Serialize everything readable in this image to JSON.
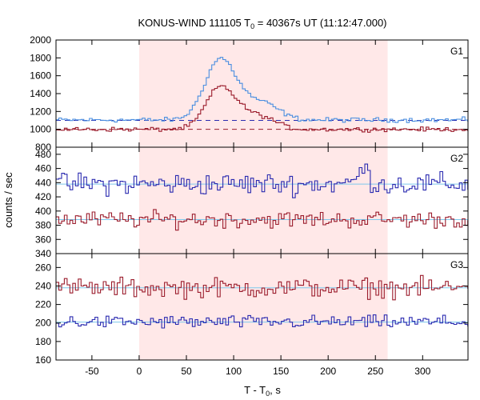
{
  "chart_data": {
    "type": "line",
    "title": {
      "main": "KONUS-WIND 111105 T",
      "sub": "0",
      "rest": " = 40367s UT (11:12:47.000)"
    },
    "xlabel": {
      "main": "T - T",
      "sub": "0",
      "rest": ", s"
    },
    "ylabel": "counts / sec",
    "xlim": [
      -88,
      348
    ],
    "xticks": [
      -50,
      0,
      50,
      100,
      150,
      200,
      250,
      300
    ],
    "highlight_interval": [
      0,
      263
    ],
    "colors": {
      "red": "#9b1c2c",
      "blue": "#2a2ab0",
      "lightblue": "#4a8ee0",
      "bg_line": "#7ec8ec",
      "band": "#ffe8e8"
    },
    "panels": [
      {
        "label": "G1",
        "ylim": [
          800,
          2000
        ],
        "yticks": [
          800,
          1000,
          1200,
          1400,
          1600,
          1800,
          2000
        ],
        "background_levels": [
          {
            "series": "blue",
            "value": 1100,
            "style": "dashed"
          },
          {
            "series": "red",
            "value": 1000,
            "style": "dashed"
          }
        ],
        "series": [
          {
            "color": "lightblue",
            "base": 1105,
            "noise": 22,
            "peaks": [
              {
                "x": 55,
                "rise": 25,
                "decay": 0,
                "amp": 0
              },
              {
                "x": 85,
                "amp": 640,
                "sigma": 16
              },
              {
                "x": 117,
                "amp": 180,
                "sigma": 20
              },
              {
                "x": 140,
                "amp": 70,
                "sigma": 14
              }
            ]
          },
          {
            "color": "red",
            "base": 1000,
            "noise": 20,
            "peaks": [
              {
                "x": 85,
                "amp": 440,
                "sigma": 15
              },
              {
                "x": 115,
                "amp": 160,
                "sigma": 18
              },
              {
                "x": 140,
                "amp": 50,
                "sigma": 12
              }
            ]
          }
        ]
      },
      {
        "label": "G2",
        "ylim": [
          340,
          490
        ],
        "yticks": [
          340,
          360,
          380,
          400,
          420,
          440,
          460,
          480
        ],
        "background_levels": [
          {
            "series": "bg_line",
            "value": 438,
            "style": "solid"
          },
          {
            "series": "bg_line",
            "value": 388,
            "style": "solid"
          }
        ],
        "series": [
          {
            "color": "blue",
            "base": 438,
            "noise": 13,
            "peaks": [
              {
                "x": 237,
                "amp": 20,
                "sigma": 6
              }
            ]
          },
          {
            "color": "red",
            "base": 388,
            "noise": 10,
            "peaks": []
          }
        ]
      },
      {
        "label": "G3",
        "ylim": [
          160,
          275
        ],
        "yticks": [
          160,
          180,
          200,
          220,
          240,
          260
        ],
        "background_levels": [
          {
            "series": "bg_line",
            "value": 238,
            "style": "solid"
          },
          {
            "series": "bg_line",
            "value": 201,
            "style": "solid"
          }
        ],
        "series": [
          {
            "color": "red",
            "base": 238,
            "noise": 9,
            "peaks": []
          },
          {
            "color": "blue",
            "base": 201,
            "noise": 6,
            "peaks": []
          }
        ]
      }
    ]
  }
}
